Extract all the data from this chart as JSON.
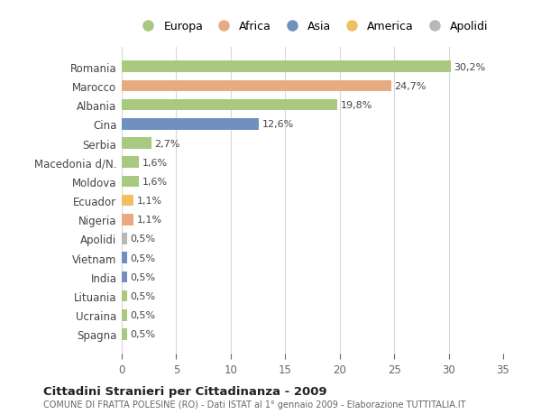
{
  "categories": [
    "Romania",
    "Marocco",
    "Albania",
    "Cina",
    "Serbia",
    "Macedonia d/N.",
    "Moldova",
    "Ecuador",
    "Nigeria",
    "Apolidi",
    "Vietnam",
    "India",
    "Lituania",
    "Ucraina",
    "Spagna"
  ],
  "values": [
    30.2,
    24.7,
    19.8,
    12.6,
    2.7,
    1.6,
    1.6,
    1.1,
    1.1,
    0.5,
    0.5,
    0.5,
    0.5,
    0.5,
    0.5
  ],
  "labels": [
    "30,2%",
    "24,7%",
    "19,8%",
    "12,6%",
    "2,7%",
    "1,6%",
    "1,6%",
    "1,1%",
    "1,1%",
    "0,5%",
    "0,5%",
    "0,5%",
    "0,5%",
    "0,5%",
    "0,5%"
  ],
  "colors": [
    "#a8c97f",
    "#e8aa80",
    "#a8c97f",
    "#7090c0",
    "#a8c97f",
    "#a8c97f",
    "#a8c97f",
    "#f0c060",
    "#e8aa80",
    "#b8b8b8",
    "#7090c0",
    "#7090c0",
    "#a8c97f",
    "#a8c97f",
    "#a8c97f"
  ],
  "legend_labels": [
    "Europa",
    "Africa",
    "Asia",
    "America",
    "Apolidi"
  ],
  "legend_colors": [
    "#a8c97f",
    "#e8aa80",
    "#7090c0",
    "#f0c060",
    "#b8b8b8"
  ],
  "title": "Cittadini Stranieri per Cittadinanza - 2009",
  "subtitle": "COMUNE DI FRATTA POLESINE (RO) - Dati ISTAT al 1° gennaio 2009 - Elaborazione TUTTITALIA.IT",
  "xlim": [
    0,
    35
  ],
  "xticks": [
    0,
    5,
    10,
    15,
    20,
    25,
    30,
    35
  ],
  "background_color": "#ffffff",
  "grid_color": "#d8d8d8"
}
